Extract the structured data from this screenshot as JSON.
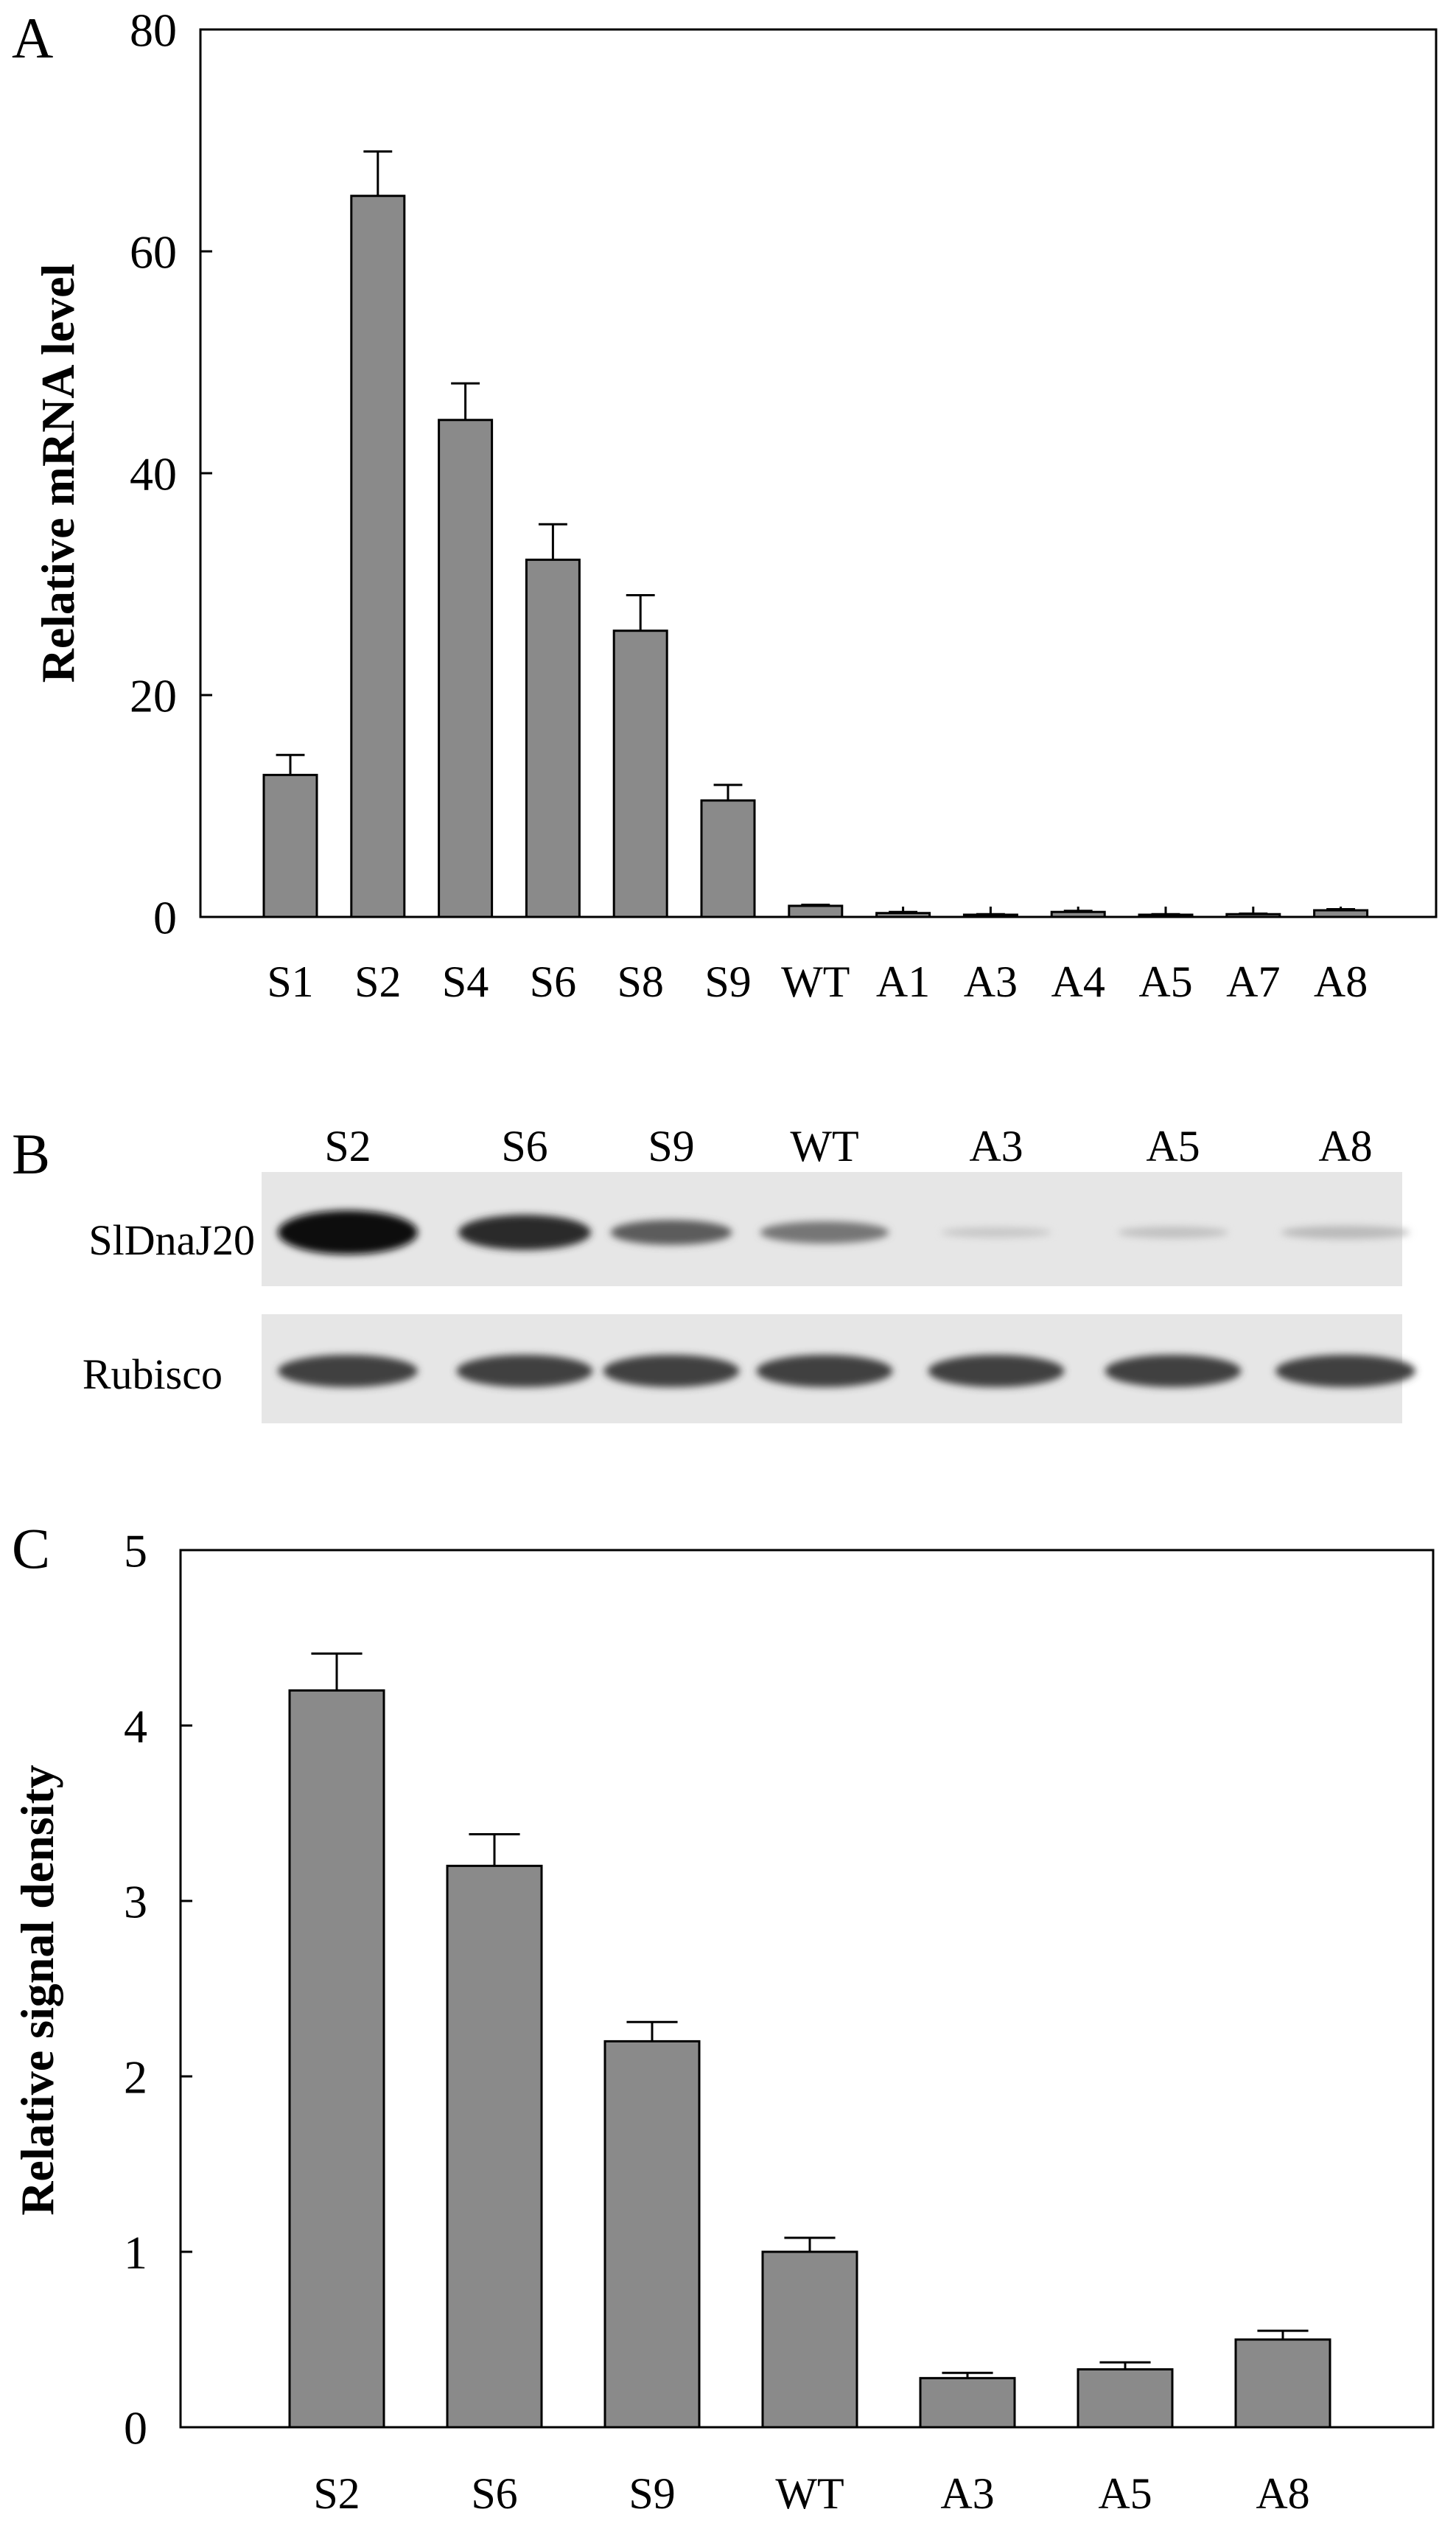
{
  "panels": {
    "a_letter": "A",
    "b_letter": "B",
    "c_letter": "C"
  },
  "colors": {
    "bar": "#8a8a8a",
    "ink": "#000000",
    "blot_bg": "#e6e6e6"
  },
  "chart_data": [
    {
      "type": "bar",
      "panel": "A",
      "ylabel": "Relative mRNA level",
      "xlabel": "",
      "ylim": [
        0,
        80
      ],
      "yticks": [
        0,
        20,
        40,
        60,
        80
      ],
      "categories": [
        "S1",
        "S2",
        "S4",
        "S6",
        "S8",
        "S9",
        "WT",
        "A1",
        "A3",
        "A4",
        "A5",
        "A7",
        "A8"
      ],
      "values": [
        12.8,
        65.0,
        44.8,
        32.2,
        25.8,
        10.5,
        1.0,
        0.35,
        0.2,
        0.45,
        0.2,
        0.25,
        0.6
      ],
      "errors": [
        1.8,
        4.0,
        3.3,
        3.2,
        3.2,
        1.4,
        0.1,
        0.1,
        0.05,
        0.1,
        0.05,
        0.05,
        0.1
      ],
      "grid": false,
      "legend": "none"
    },
    {
      "type": "bar",
      "panel": "C",
      "ylabel": "Relative signal density",
      "xlabel": "",
      "ylim": [
        0,
        5
      ],
      "yticks": [
        0,
        1,
        2,
        3,
        4,
        5
      ],
      "categories": [
        "S2",
        "S6",
        "S9",
        "WT",
        "A3",
        "A5",
        "A8"
      ],
      "values": [
        4.2,
        3.2,
        2.2,
        1.0,
        0.28,
        0.33,
        0.5
      ],
      "errors": [
        0.21,
        0.18,
        0.11,
        0.08,
        0.03,
        0.04,
        0.05
      ],
      "grid": false,
      "legend": "none"
    }
  ],
  "blot": {
    "lanes": [
      "S2",
      "S6",
      "S9",
      "WT",
      "A3",
      "A5",
      "A8"
    ],
    "rows": [
      {
        "label": "SlDnaJ20",
        "intensity": [
          1.0,
          0.85,
          0.62,
          0.5,
          0.12,
          0.15,
          0.18
        ]
      },
      {
        "label": "Rubisco",
        "intensity": [
          0.75,
          0.75,
          0.75,
          0.75,
          0.75,
          0.75,
          0.75
        ]
      }
    ]
  }
}
